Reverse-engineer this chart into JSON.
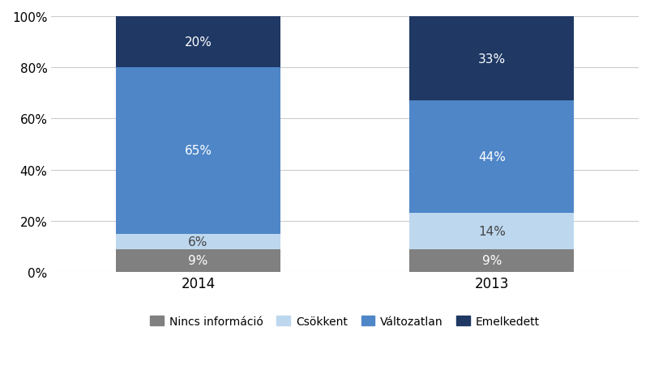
{
  "categories": [
    "2014",
    "2013"
  ],
  "series": {
    "Nincs információ": [
      9,
      9
    ],
    "Csökkent": [
      6,
      14
    ],
    "Változatlan": [
      65,
      44
    ],
    "Emelkedett": [
      20,
      33
    ]
  },
  "colors": {
    "Nincs információ": "#808080",
    "Csökkent": "#bdd7ee",
    "Változatlan": "#4e86c8",
    "Emelkedett": "#1f3864"
  },
  "label_colors": {
    "Nincs információ": "white",
    "Csökkent": "#444444",
    "Változatlan": "white",
    "Emelkedett": "white"
  },
  "yticks": [
    0,
    20,
    40,
    60,
    80,
    100
  ],
  "ytick_labels": [
    "0%",
    "20%",
    "40%",
    "60%",
    "80%",
    "100%"
  ],
  "bar_width": 0.28,
  "x_positions": [
    0.25,
    0.75
  ],
  "xlim": [
    0.0,
    1.0
  ],
  "background_color": "#ffffff",
  "grid_color": "#cccccc",
  "legend_order": [
    "Nincs információ",
    "Csökkent",
    "Változatlan",
    "Emelkedett"
  ]
}
